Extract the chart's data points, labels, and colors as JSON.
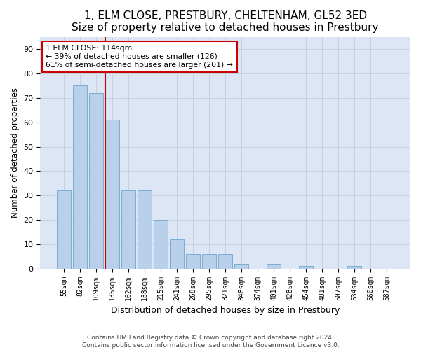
{
  "title": "1, ELM CLOSE, PRESTBURY, CHELTENHAM, GL52 3ED",
  "subtitle": "Size of property relative to detached houses in Prestbury",
  "xlabel": "Distribution of detached houses by size in Prestbury",
  "ylabel": "Number of detached properties",
  "bar_values": [
    32,
    75,
    72,
    61,
    32,
    32,
    20,
    12,
    6,
    6,
    6,
    2,
    0,
    2,
    0,
    1,
    0,
    0,
    1,
    0,
    0
  ],
  "bar_labels": [
    "55sqm",
    "82sqm",
    "109sqm",
    "135sqm",
    "162sqm",
    "188sqm",
    "215sqm",
    "241sqm",
    "268sqm",
    "295sqm",
    "321sqm",
    "348sqm",
    "374sqm",
    "401sqm",
    "428sqm",
    "454sqm",
    "481sqm",
    "507sqm",
    "534sqm",
    "560sqm",
    "587sqm"
  ],
  "bar_color": "#b8d0ea",
  "bar_edgecolor": "#7aadd4",
  "vline_index": 2.575,
  "vline_color": "#cc0000",
  "annotation_text": "1 ELM CLOSE: 114sqm\n← 39% of detached houses are smaller (126)\n61% of semi-detached houses are larger (201) →",
  "annotation_box_edgecolor": "#cc0000",
  "annotation_box_facecolor": "#ffffff",
  "ylim": [
    0,
    95
  ],
  "yticks": [
    0,
    10,
    20,
    30,
    40,
    50,
    60,
    70,
    80,
    90
  ],
  "background_color": "#ffffff",
  "plot_bg_color": "#dce6f5",
  "grid_color": "#c0cce0",
  "footer_line1": "Contains HM Land Registry data © Crown copyright and database right 2024.",
  "footer_line2": "Contains public sector information licensed under the Government Licence v3.0.",
  "title_fontsize": 11,
  "subtitle_fontsize": 9.5,
  "xlabel_fontsize": 9,
  "ylabel_fontsize": 8.5
}
